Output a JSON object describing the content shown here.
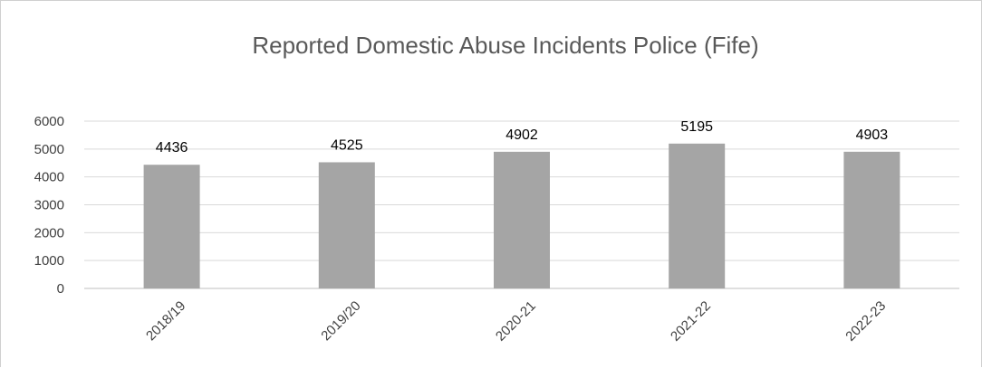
{
  "chart_data": {
    "type": "bar",
    "title": "Reported Domestic Abuse Incidents Police (Fife)",
    "categories": [
      "2018/19",
      "2019/20",
      "2020-21",
      "2021-22",
      "2022-23"
    ],
    "values": [
      4436,
      4525,
      4902,
      5195,
      4903
    ],
    "ylim": [
      0,
      6000
    ],
    "yticks": [
      0,
      1000,
      2000,
      3000,
      4000,
      5000,
      6000
    ],
    "xlabel": "",
    "ylabel": "",
    "grid": true,
    "legend": "none",
    "data_labels": true,
    "colors": {
      "bar": "#a5a5a5",
      "grid": "#d9d9d9",
      "text": "#404040"
    }
  }
}
